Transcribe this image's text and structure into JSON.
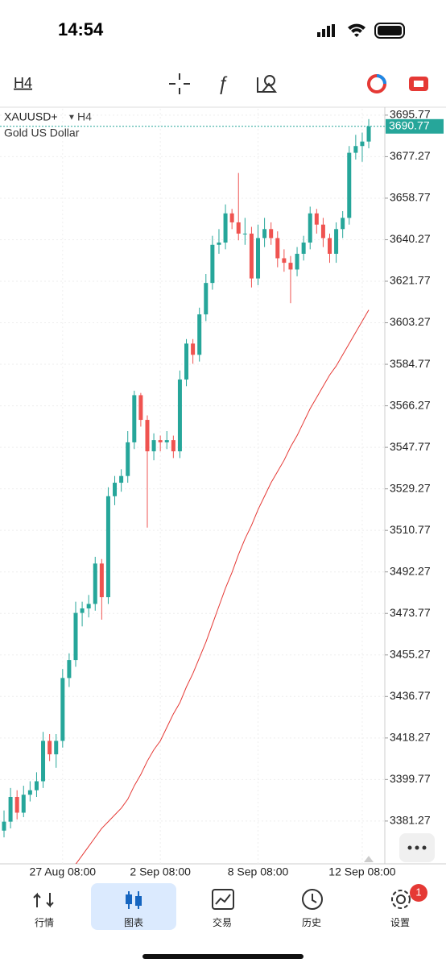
{
  "status_bar": {
    "time": "14:54"
  },
  "toolbar": {
    "timeframe": "H4"
  },
  "chart_data": {
    "type": "candlestick",
    "symbol": "XAUUSD+",
    "timeframe": "H4",
    "description": "Gold US Dollar",
    "up_color": "#26a69a",
    "down_color": "#ef5350",
    "ma_color": "#e53935",
    "grid": true,
    "categories": [
      null,
      null,
      null,
      null,
      null,
      null,
      null,
      null,
      null,
      "27 Aug 08:00",
      null,
      null,
      null,
      null,
      null,
      null,
      null,
      null,
      null,
      null,
      null,
      null,
      null,
      null,
      "2 Sep 08:00",
      null,
      null,
      null,
      null,
      null,
      null,
      null,
      null,
      null,
      null,
      null,
      null,
      null,
      null,
      "8 Sep 08:00",
      null,
      null,
      null,
      null,
      null,
      null,
      null,
      null,
      null,
      null,
      null,
      null,
      null,
      null,
      null,
      "12 Sep 08:00",
      null
    ],
    "open": [
      3377,
      3381,
      3392,
      3385,
      3393,
      3395,
      3399,
      3417,
      3411,
      3417,
      3445,
      3453,
      3474,
      3476,
      3478,
      3496,
      3481,
      3526,
      3532,
      3535,
      3550,
      3571,
      3560,
      3546,
      3551,
      3550,
      3551,
      3546,
      3578,
      3594,
      3589,
      3607,
      3621,
      3638,
      3639,
      3652,
      3648,
      3643,
      3643,
      3623,
      3641,
      3645,
      3641,
      3632,
      3630,
      3627,
      3634,
      3639,
      3652,
      3647,
      3641,
      3634,
      3645,
      3650,
      3679,
      3682,
      3684
    ],
    "high": [
      3386,
      3396,
      3395,
      3397,
      3399,
      3403,
      3421,
      3420,
      3420,
      3449,
      3456,
      3479,
      3479,
      3482,
      3499,
      3498,
      3530,
      3535,
      3538,
      3555,
      3573,
      3572,
      3562,
      3554,
      3553,
      3555,
      3553,
      3582,
      3596,
      3596,
      3610,
      3625,
      3642,
      3645,
      3656,
      3654,
      3670,
      3650,
      3646,
      3647,
      3650,
      3648,
      3644,
      3636,
      3633,
      3637,
      3642,
      3655,
      3654,
      3650,
      3643,
      3648,
      3653,
      3682,
      3687,
      3688,
      3694
    ],
    "low": [
      3374,
      3378,
      3382,
      3383,
      3390,
      3392,
      3396,
      3408,
      3405,
      3414,
      3441,
      3450,
      3468,
      3472,
      3475,
      3471,
      3478,
      3522,
      3528,
      3532,
      3547,
      3557,
      3512,
      3542,
      3546,
      3547,
      3543,
      3543,
      3575,
      3585,
      3586,
      3604,
      3618,
      3634,
      3636,
      3645,
      3640,
      3638,
      3619,
      3620,
      3637,
      3638,
      3628,
      3626,
      3612,
      3624,
      3631,
      3636,
      3643,
      3637,
      3630,
      3630,
      3641,
      3647,
      3676,
      3675,
      3681
    ],
    "close": [
      3381,
      3392,
      3385,
      3393,
      3395,
      3399,
      3417,
      3411,
      3417,
      3445,
      3453,
      3474,
      3476,
      3478,
      3496,
      3481,
      3526,
      3532,
      3535,
      3550,
      3571,
      3560,
      3546,
      3551,
      3550,
      3551,
      3546,
      3578,
      3594,
      3589,
      3607,
      3621,
      3638,
      3639,
      3652,
      3648,
      3643,
      3643,
      3623,
      3641,
      3645,
      3641,
      3632,
      3630,
      3627,
      3634,
      3639,
      3652,
      3647,
      3641,
      3634,
      3645,
      3650,
      3679,
      3682,
      3684,
      3690.77
    ],
    "ma": [
      null,
      null,
      null,
      null,
      null,
      null,
      null,
      null,
      null,
      null,
      null,
      3362,
      3366,
      3370,
      3374,
      3378,
      3381,
      3384,
      3387,
      3391,
      3397,
      3402,
      3408,
      3413,
      3417,
      3423,
      3429,
      3434,
      3441,
      3447,
      3454,
      3461,
      3469,
      3477,
      3485,
      3492,
      3500,
      3507,
      3513,
      3520,
      3526,
      3532,
      3537,
      3542,
      3548,
      3553,
      3559,
      3565,
      3570,
      3575,
      3580,
      3584,
      3589,
      3594,
      3599,
      3604,
      3609
    ],
    "last_price": 3690.77,
    "ylim": [
      3362.2,
      3698.6
    ],
    "yticks": [
      3695.77,
      3677.27,
      3658.77,
      3640.27,
      3621.77,
      3603.27,
      3584.77,
      3566.27,
      3547.77,
      3529.27,
      3510.77,
      3492.27,
      3473.77,
      3455.27,
      3436.77,
      3418.27,
      3399.77,
      3381.27
    ]
  },
  "bottom_nav": {
    "items": [
      "行情",
      "图表",
      "交易",
      "历史",
      "设置"
    ],
    "badge": 1
  }
}
